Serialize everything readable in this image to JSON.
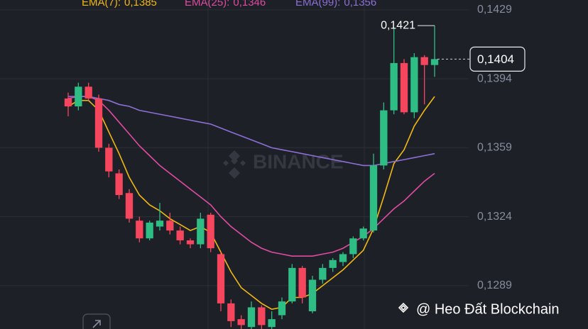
{
  "chart_data": {
    "type": "candlestick",
    "ylim": [
      0.1267,
      0.1434
    ],
    "yticks": [
      {
        "value": 0.1429,
        "label": "0,1429"
      },
      {
        "value": 0.1394,
        "label": "0,1394"
      },
      {
        "value": 0.1359,
        "label": "0,1359"
      },
      {
        "value": 0.1324,
        "label": "0,1324"
      },
      {
        "value": 0.1289,
        "label": "0,1289"
      }
    ],
    "grid": true,
    "up_color": "#2ebd85",
    "down_color": "#f6465d",
    "ohlc": {
      "open": [
        0.1384,
        0.138,
        0.139,
        0.1384,
        0.1359,
        0.1346,
        0.1336,
        0.1322,
        0.1313,
        0.1319,
        0.1322,
        0.1317,
        0.1312,
        0.131,
        0.1325,
        0.1305,
        0.128,
        0.1272,
        0.1268,
        0.1278,
        0.1268,
        0.1274,
        0.1281,
        0.1298,
        0.1276,
        0.1292,
        0.1298,
        0.1301,
        0.1305,
        0.1313,
        0.1317,
        0.135,
        0.1378,
        0.1402,
        0.1377,
        0.1405,
        0.1401
      ],
      "high": [
        0.1387,
        0.1392,
        0.1392,
        0.1386,
        0.1361,
        0.1348,
        0.1338,
        0.1324,
        0.1322,
        0.1331,
        0.1326,
        0.1319,
        0.1313,
        0.1326,
        0.1326,
        0.1306,
        0.1282,
        0.1274,
        0.1281,
        0.1279,
        0.1276,
        0.1283,
        0.13,
        0.1299,
        0.1294,
        0.13,
        0.1303,
        0.1306,
        0.1314,
        0.1319,
        0.1356,
        0.1382,
        0.142,
        0.1404,
        0.1407,
        0.1406,
        0.1421
      ],
      "low": [
        0.1375,
        0.1378,
        0.1383,
        0.1357,
        0.1344,
        0.1333,
        0.1321,
        0.1311,
        0.1312,
        0.1317,
        0.1315,
        0.131,
        0.1308,
        0.1308,
        0.1306,
        0.1276,
        0.1268,
        0.1266,
        0.1266,
        0.1266,
        0.1265,
        0.1272,
        0.128,
        0.128,
        0.1275,
        0.129,
        0.1296,
        0.1299,
        0.1303,
        0.1312,
        0.1316,
        0.1348,
        0.1376,
        0.1376,
        0.1374,
        0.1381,
        0.1395
      ],
      "close": [
        0.138,
        0.139,
        0.1384,
        0.1359,
        0.1347,
        0.1335,
        0.1323,
        0.1313,
        0.1321,
        0.1322,
        0.1317,
        0.1312,
        0.131,
        0.1323,
        0.1308,
        0.128,
        0.1271,
        0.1269,
        0.1278,
        0.1269,
        0.1272,
        0.1281,
        0.1298,
        0.1283,
        0.1292,
        0.1298,
        0.1302,
        0.1305,
        0.1313,
        0.1318,
        0.135,
        0.1378,
        0.1402,
        0.1377,
        0.1405,
        0.1401,
        0.1404
      ]
    },
    "series": [
      {
        "name": "EMA(7):",
        "last_label": "0,1385",
        "color": "#f0b90b",
        "values": [
          0.138,
          0.1383,
          0.1383,
          0.1378,
          0.1367,
          0.1356,
          0.1344,
          0.1335,
          0.133,
          0.1327,
          0.1323,
          0.132,
          0.1317,
          0.1319,
          0.1316,
          0.1306,
          0.1296,
          0.1288,
          0.1284,
          0.128,
          0.1277,
          0.1278,
          0.1283,
          0.1283,
          0.1285,
          0.1289,
          0.1293,
          0.1297,
          0.1302,
          0.1307,
          0.1318,
          0.1334,
          0.1351,
          0.1358,
          0.137,
          0.1378,
          0.1385
        ]
      },
      {
        "name": "EMA(25):",
        "last_label": "0,1346",
        "color": "#e04ba3",
        "values": [
          0.1384,
          0.1385,
          0.1385,
          0.1383,
          0.1378,
          0.1372,
          0.1366,
          0.136,
          0.1355,
          0.135,
          0.1346,
          0.1342,
          0.1338,
          0.1334,
          0.133,
          0.1324,
          0.1319,
          0.1315,
          0.1311,
          0.1308,
          0.1306,
          0.1305,
          0.1304,
          0.1304,
          0.1304,
          0.1305,
          0.1306,
          0.1308,
          0.1311,
          0.1314,
          0.1318,
          0.1323,
          0.1328,
          0.1332,
          0.1337,
          0.1342,
          0.1346
        ]
      },
      {
        "name": "EMA(99):",
        "last_label": "0,1356",
        "color": "#8d6fd6",
        "values": [
          0.1385,
          0.1385,
          0.1385,
          0.1384,
          0.1383,
          0.1381,
          0.138,
          0.1378,
          0.1377,
          0.1376,
          0.1375,
          0.1374,
          0.1373,
          0.1372,
          0.1371,
          0.1369,
          0.1367,
          0.1365,
          0.1363,
          0.1361,
          0.1359,
          0.1358,
          0.1357,
          0.1356,
          0.1355,
          0.1354,
          0.1353,
          0.1352,
          0.1351,
          0.135,
          0.135,
          0.1351,
          0.1352,
          0.1353,
          0.1354,
          0.1355,
          0.1356
        ]
      }
    ],
    "last_price": {
      "value": 0.1404,
      "label": "0,1404"
    },
    "max_price": {
      "value": 0.1421,
      "label": "0,1421"
    },
    "watermark": "BINANCE",
    "credit": "@ Heo Đất Blockchain"
  }
}
